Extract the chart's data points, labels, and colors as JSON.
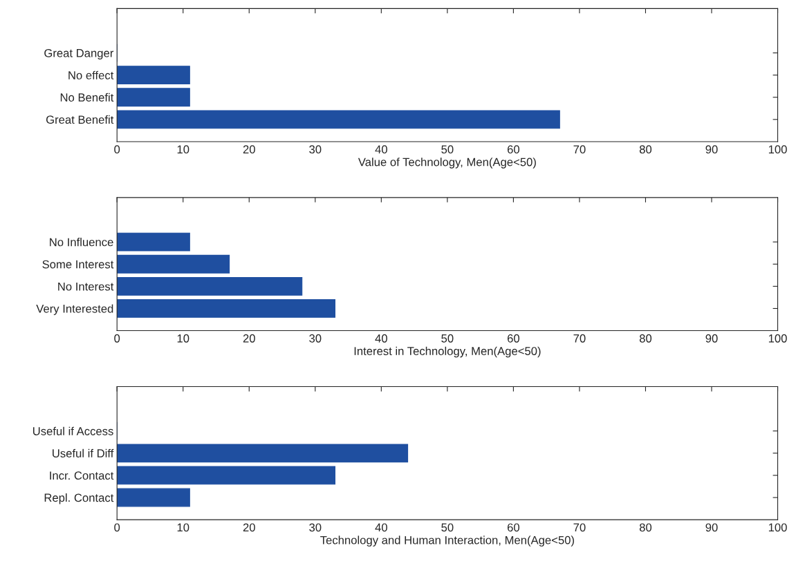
{
  "chart_data": [
    {
      "type": "bar",
      "orientation": "horizontal",
      "xlabel": "Value of Technology, Men(Age<50)",
      "categories": [
        "Great Danger",
        "No effect",
        "No Benefit",
        "Great Benefit"
      ],
      "values": [
        0,
        11,
        11,
        67
      ],
      "color": "#1f4fa0",
      "xlim": [
        0,
        100
      ],
      "xticks": [
        0,
        10,
        20,
        30,
        40,
        50,
        60,
        70,
        80,
        90,
        100
      ]
    },
    {
      "type": "bar",
      "orientation": "horizontal",
      "xlabel": "Interest in Technology, Men(Age<50)",
      "categories": [
        "No Influence",
        "Some Interest",
        "No Interest",
        "Very Interested"
      ],
      "values": [
        11,
        17,
        28,
        33
      ],
      "color": "#1f4fa0",
      "xlim": [
        0,
        100
      ],
      "xticks": [
        0,
        10,
        20,
        30,
        40,
        50,
        60,
        70,
        80,
        90,
        100
      ]
    },
    {
      "type": "bar",
      "orientation": "horizontal",
      "xlabel": "Technology and Human Interaction, Men(Age<50)",
      "categories": [
        "Useful if Access",
        "Useful if Diff",
        "Incr. Contact",
        "Repl. Contact"
      ],
      "values": [
        0,
        44,
        33,
        11
      ],
      "color": "#1f4fa0",
      "xlim": [
        0,
        100
      ],
      "xticks": [
        0,
        10,
        20,
        30,
        40,
        50,
        60,
        70,
        80,
        90,
        100
      ]
    }
  ]
}
